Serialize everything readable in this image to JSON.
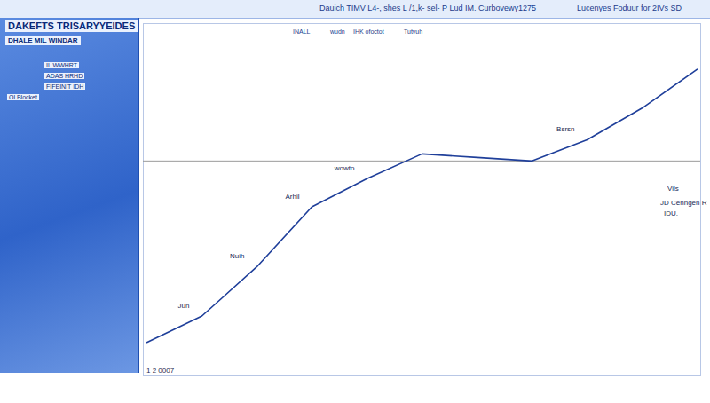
{
  "chart_data": {
    "type": "line",
    "title": "DAKEFTS TRISARYYEIDES",
    "subtitle": "DHALE MIL WINDAR",
    "header_texts": [
      "Dauich TIMV L4-, shes L /1,k- sel- P Lud IM. Curbovewy1275",
      "Lucenyes Foduur for 2IVs SD"
    ],
    "subheader_texts": [
      "INALL",
      "wudn",
      "IHK ofoctot",
      "Tutvuh"
    ],
    "panel_texts": [
      "IL WWHRT",
      "ADAS HRHD",
      "FIFEINIT IDH",
      "Ol Blocket"
    ],
    "categories": [
      null,
      null,
      null,
      null,
      null,
      null,
      null,
      null,
      null,
      null,
      null
    ],
    "values": [
      9.5,
      17,
      31,
      48,
      56,
      63,
      62,
      61,
      67,
      76,
      87
    ],
    "point_labels": [
      null,
      "Jun",
      "Nuih",
      "Arhil",
      "wowto",
      null,
      null,
      null,
      "Bsrsn",
      null,
      null
    ],
    "annotations": [
      "Vils",
      "JD Cenngen R",
      "IDU.",
      "1 2 0007"
    ],
    "reference_line": 61,
    "ylim": [
      0,
      100
    ],
    "color": "#1f3f9a",
    "tick_labels": false
  }
}
